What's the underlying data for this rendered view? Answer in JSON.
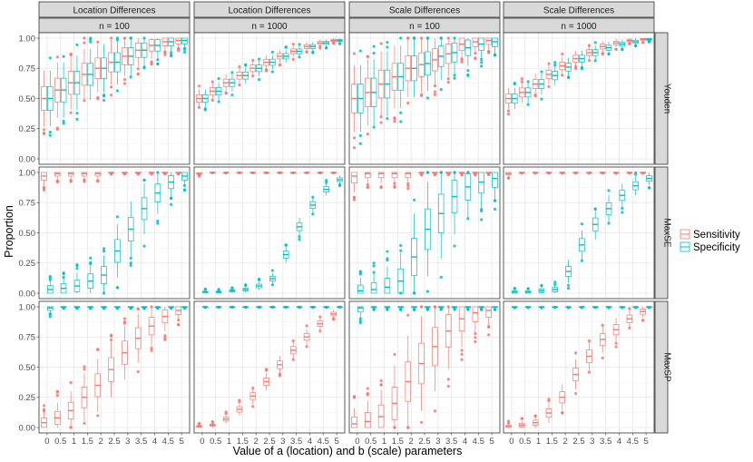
{
  "chart_data": {
    "type": "boxplot-facet-grid",
    "ylabel": "Proportion",
    "xlabel": "Value of a (location) and b (scale) parameters",
    "categories": [
      "0",
      "0.5",
      "1",
      "1.5",
      "2",
      "2.5",
      "3",
      "3.5",
      "4",
      "4.5",
      "5"
    ],
    "yticks": [
      "0.00",
      "0.25",
      "0.50",
      "0.75",
      "1.00"
    ],
    "ylim": [
      0,
      1
    ],
    "grid": true,
    "legend_position": "right",
    "columns": [
      {
        "strip1": "Location Differences",
        "strip2": "n = 100"
      },
      {
        "strip1": "Location Differences",
        "strip2": "n = 1000"
      },
      {
        "strip1": "Scale Differences",
        "strip2": "n = 100"
      },
      {
        "strip1": "Scale Differences",
        "strip2": "n = 1000"
      }
    ],
    "rows": [
      "Youden",
      "MaxSE",
      "MaxSP"
    ],
    "series": [
      {
        "name": "Sensitivity",
        "color": "#F8766D"
      },
      {
        "name": "Specificity",
        "color": "#00BFC4"
      }
    ],
    "medians": {
      "Youden": {
        "Sensitivity": [
          [
            0.5,
            0.57,
            0.63,
            0.7,
            0.75,
            0.8,
            0.85,
            0.9,
            0.94,
            0.97,
            0.98
          ],
          [
            0.5,
            0.56,
            0.63,
            0.69,
            0.75,
            0.8,
            0.85,
            0.89,
            0.93,
            0.96,
            0.98
          ],
          [
            0.5,
            0.55,
            0.62,
            0.68,
            0.75,
            0.78,
            0.82,
            0.87,
            0.95,
            0.97,
            0.98
          ],
          [
            0.5,
            0.55,
            0.62,
            0.7,
            0.77,
            0.83,
            0.88,
            0.93,
            0.96,
            0.98,
            0.99
          ]
        ],
        "Specificity": [
          [
            0.5,
            0.57,
            0.63,
            0.7,
            0.75,
            0.8,
            0.85,
            0.9,
            0.94,
            0.97,
            0.98
          ],
          [
            0.5,
            0.56,
            0.63,
            0.69,
            0.75,
            0.8,
            0.85,
            0.89,
            0.93,
            0.96,
            0.98
          ],
          [
            0.5,
            0.55,
            0.62,
            0.68,
            0.75,
            0.79,
            0.85,
            0.88,
            0.92,
            0.95,
            0.97
          ],
          [
            0.5,
            0.55,
            0.62,
            0.69,
            0.76,
            0.83,
            0.88,
            0.92,
            0.95,
            0.97,
            0.99
          ]
        ]
      },
      "MaxSE": {
        "Sensitivity": [
          [
            0.97,
            0.99,
            0.99,
            0.99,
            0.99,
            1.0,
            1.0,
            1.0,
            1.0,
            1.0,
            1.0
          ],
          [
            0.99,
            1.0,
            1.0,
            1.0,
            1.0,
            1.0,
            1.0,
            1.0,
            1.0,
            1.0,
            1.0
          ],
          [
            0.97,
            0.99,
            0.99,
            0.99,
            0.99,
            1.0,
            1.0,
            1.0,
            1.0,
            1.0,
            1.0
          ],
          [
            0.99,
            1.0,
            1.0,
            1.0,
            1.0,
            1.0,
            1.0,
            1.0,
            1.0,
            1.0,
            1.0
          ]
        ],
        "Specificity": [
          [
            0.03,
            0.04,
            0.06,
            0.1,
            0.15,
            0.35,
            0.53,
            0.7,
            0.83,
            0.92,
            0.97
          ],
          [
            0.01,
            0.01,
            0.02,
            0.03,
            0.06,
            0.12,
            0.32,
            0.55,
            0.73,
            0.86,
            0.94
          ],
          [
            0.02,
            0.03,
            0.05,
            0.1,
            0.3,
            0.53,
            0.66,
            0.8,
            0.88,
            0.92,
            0.95
          ],
          [
            0.01,
            0.01,
            0.02,
            0.03,
            0.18,
            0.4,
            0.57,
            0.7,
            0.81,
            0.89,
            0.95
          ]
        ]
      },
      "MaxSP": {
        "Sensitivity": [
          [
            0.04,
            0.08,
            0.14,
            0.25,
            0.35,
            0.48,
            0.62,
            0.74,
            0.84,
            0.92,
            0.97
          ],
          [
            0.01,
            0.02,
            0.07,
            0.15,
            0.26,
            0.38,
            0.52,
            0.64,
            0.75,
            0.86,
            0.94
          ],
          [
            0.03,
            0.05,
            0.09,
            0.2,
            0.38,
            0.53,
            0.67,
            0.8,
            0.9,
            0.95,
            0.97
          ],
          [
            0.01,
            0.02,
            0.04,
            0.12,
            0.25,
            0.44,
            0.59,
            0.73,
            0.81,
            0.9,
            0.96
          ]
        ],
        "Specificity": [
          [
            0.99,
            1.0,
            1.0,
            1.0,
            1.0,
            1.0,
            1.0,
            1.0,
            1.0,
            1.0,
            1.0
          ],
          [
            1.0,
            1.0,
            1.0,
            1.0,
            1.0,
            1.0,
            1.0,
            1.0,
            1.0,
            1.0,
            1.0
          ],
          [
            0.99,
            1.0,
            1.0,
            1.0,
            1.0,
            1.0,
            1.0,
            1.0,
            1.0,
            1.0,
            1.0
          ],
          [
            1.0,
            1.0,
            1.0,
            1.0,
            1.0,
            1.0,
            1.0,
            1.0,
            1.0,
            1.0,
            1.0
          ]
        ]
      }
    }
  }
}
